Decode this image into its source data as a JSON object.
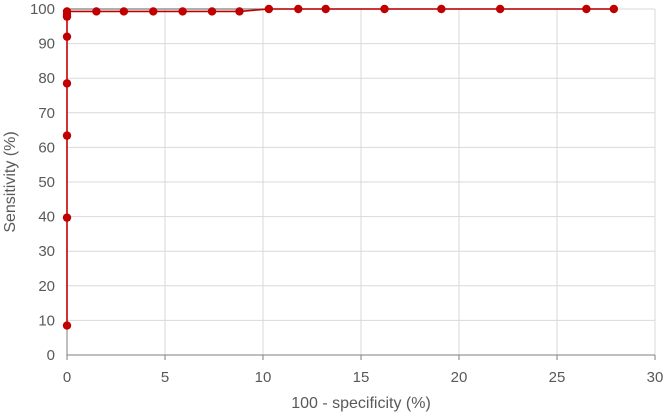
{
  "chart_data": {
    "type": "line",
    "title": "",
    "xlabel": "100 - specificity (%)",
    "ylabel": "Sensitivity (%)",
    "xlim": [
      0,
      30
    ],
    "ylim": [
      0,
      100
    ],
    "x_ticks": [
      "0",
      "5",
      "10",
      "15",
      "20",
      "25",
      "30"
    ],
    "y_ticks": [
      "0",
      "10",
      "20",
      "30",
      "40",
      "50",
      "60",
      "70",
      "80",
      "90",
      "100"
    ],
    "grid": true,
    "legend": "none",
    "colors": {
      "series": "#c00000",
      "reference_line": "#7f7f7f",
      "grid": "#d9d9d9",
      "axis": "#7f7f7f"
    },
    "series": [
      {
        "x": [
          0,
          0,
          0,
          0,
          0,
          0,
          0,
          0,
          1.5,
          2.9,
          4.4,
          5.9,
          7.4,
          8.8,
          10.3,
          11.8,
          13.2,
          16.2,
          19.1,
          22.1,
          26.5,
          27.9
        ],
        "y": [
          8.5,
          39.7,
          63.4,
          78.5,
          92.0,
          97.8,
          98.4,
          99.3,
          99.3,
          99.3,
          99.3,
          99.3,
          99.3,
          99.3,
          100,
          100,
          100,
          100,
          100,
          100,
          100,
          100
        ]
      }
    ],
    "reference_line": {
      "x": [
        0,
        27.9
      ],
      "y": [
        100,
        100
      ]
    }
  }
}
